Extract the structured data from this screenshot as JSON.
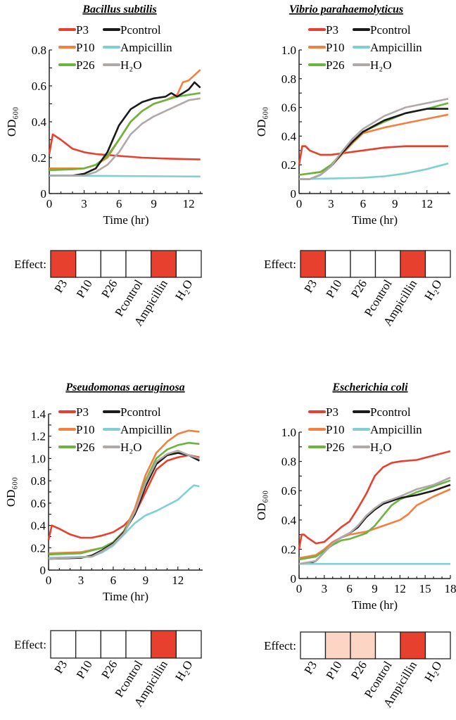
{
  "chart_data": [
    {
      "type": "line",
      "title": "Bacillus subtilis",
      "xlabel": "Time (hr)",
      "ylabel": "OD₆₀₀",
      "xlim": [
        0,
        13.2
      ],
      "ylim": [
        0,
        0.8
      ],
      "xticks": [
        "0",
        "3",
        "6",
        "9",
        "12"
      ],
      "xtick_values": [
        0,
        3,
        6,
        9,
        12
      ],
      "yticks": [
        "0",
        "0.2",
        "0.4",
        "0.6",
        "0.8"
      ],
      "ytick_values": [
        0,
        0.2,
        0.4,
        0.6,
        0.8
      ],
      "legend": "top",
      "effect_label": "Effect:",
      "effect_categories": [
        "P3",
        "P10",
        "P26",
        "Pcontrol",
        "Ampicillin",
        "H₂O"
      ],
      "effect_levels": [
        "strong",
        "none",
        "none",
        "none",
        "strong",
        "none"
      ],
      "series": [
        {
          "name": "P3",
          "color": "#e8402f",
          "x": [
            0,
            0.3,
            1,
            2,
            3,
            4,
            5,
            6,
            8,
            10,
            13
          ],
          "y": [
            0.22,
            0.33,
            0.3,
            0.25,
            0.23,
            0.22,
            0.215,
            0.21,
            0.2,
            0.195,
            0.19
          ]
        },
        {
          "name": "P10",
          "color": "#f47f3e",
          "x": [
            0,
            2,
            3,
            4,
            5,
            6,
            7,
            8,
            9,
            10,
            11,
            11.5,
            12,
            13
          ],
          "y": [
            0.14,
            0.14,
            0.14,
            0.16,
            0.2,
            0.3,
            0.4,
            0.46,
            0.5,
            0.52,
            0.55,
            0.62,
            0.63,
            0.69
          ]
        },
        {
          "name": "P26",
          "color": "#6db33f",
          "x": [
            0,
            2,
            3,
            4,
            5,
            6,
            7,
            8,
            9,
            10,
            11,
            13
          ],
          "y": [
            0.13,
            0.135,
            0.14,
            0.16,
            0.21,
            0.3,
            0.4,
            0.46,
            0.5,
            0.52,
            0.54,
            0.56
          ]
        },
        {
          "name": "Pcontrol",
          "color": "#1a1a1a",
          "x": [
            0,
            2,
            3,
            4,
            5,
            6,
            7,
            8,
            9,
            10,
            10.5,
            11,
            12,
            12.5,
            13
          ],
          "y": [
            0.1,
            0.1,
            0.11,
            0.14,
            0.23,
            0.38,
            0.47,
            0.51,
            0.53,
            0.54,
            0.56,
            0.54,
            0.58,
            0.62,
            0.59
          ]
        },
        {
          "name": "Ampicillin",
          "color": "#7fcfd3",
          "x": [
            0,
            13
          ],
          "y": [
            0.1,
            0.095
          ]
        },
        {
          "name": "H₂O",
          "color": "#b0a9a8",
          "x": [
            0,
            3,
            4,
            5,
            6,
            7,
            8,
            9,
            10,
            11,
            12,
            13
          ],
          "y": [
            0.1,
            0.1,
            0.12,
            0.16,
            0.23,
            0.33,
            0.39,
            0.43,
            0.46,
            0.49,
            0.52,
            0.53
          ]
        }
      ]
    },
    {
      "type": "line",
      "title": "Vibrio parahaemolyticus",
      "xlabel": "Time (hr)",
      "ylabel": "OD₆₀₀",
      "xlim": [
        0,
        14.2
      ],
      "ylim": [
        0,
        1.0
      ],
      "xticks": [
        "0",
        "3",
        "6",
        "9",
        "12"
      ],
      "xtick_values": [
        0,
        3,
        6,
        9,
        12
      ],
      "yticks": [
        "0",
        "0.2",
        "0.4",
        "0.6",
        "0.8",
        "1.0"
      ],
      "ytick_values": [
        0,
        0.2,
        0.4,
        0.6,
        0.8,
        1.0
      ],
      "legend": "top",
      "effect_label": "Effect:",
      "effect_categories": [
        "P3",
        "P10",
        "P26",
        "Pcontrol",
        "Ampicillin",
        "H₂O"
      ],
      "effect_levels": [
        "strong",
        "none",
        "none",
        "none",
        "strong",
        "none"
      ],
      "series": [
        {
          "name": "P3",
          "color": "#e8402f",
          "x": [
            0,
            0.3,
            0.6,
            1,
            2,
            3,
            4,
            6,
            8,
            10,
            14
          ],
          "y": [
            0.2,
            0.33,
            0.33,
            0.3,
            0.27,
            0.27,
            0.28,
            0.3,
            0.32,
            0.33,
            0.33
          ]
        },
        {
          "name": "P10",
          "color": "#f47f3e",
          "x": [
            0,
            2,
            3,
            4,
            5,
            6,
            8,
            10,
            12,
            14
          ],
          "y": [
            0.13,
            0.15,
            0.19,
            0.27,
            0.35,
            0.42,
            0.46,
            0.49,
            0.52,
            0.55
          ]
        },
        {
          "name": "P26",
          "color": "#6db33f",
          "x": [
            0,
            2,
            3,
            4,
            5,
            6,
            8,
            10,
            12,
            14
          ],
          "y": [
            0.13,
            0.15,
            0.2,
            0.28,
            0.36,
            0.43,
            0.5,
            0.56,
            0.59,
            0.63
          ]
        },
        {
          "name": "Pcontrol",
          "color": "#1a1a1a",
          "x": [
            0,
            1,
            2,
            3,
            4,
            5,
            6,
            8,
            10,
            12,
            14
          ],
          "y": [
            0.1,
            0.1,
            0.13,
            0.19,
            0.28,
            0.36,
            0.43,
            0.51,
            0.56,
            0.59,
            0.59
          ]
        },
        {
          "name": "Ampicillin",
          "color": "#7fcfd3",
          "x": [
            0,
            6,
            8,
            10,
            12,
            14
          ],
          "y": [
            0.1,
            0.11,
            0.12,
            0.14,
            0.17,
            0.21
          ]
        },
        {
          "name": "H₂O",
          "color": "#b0a9a8",
          "x": [
            0,
            1,
            2,
            3,
            4,
            5,
            6,
            8,
            10,
            12,
            14
          ],
          "y": [
            0.1,
            0.1,
            0.13,
            0.19,
            0.29,
            0.38,
            0.45,
            0.54,
            0.6,
            0.63,
            0.66
          ]
        }
      ]
    },
    {
      "type": "line",
      "title": "Pseudomonas aeruginosa",
      "xlabel": "Time (hr)",
      "ylabel": "OD₆₀₀",
      "xlim": [
        0,
        14.3
      ],
      "ylim": [
        0,
        1.4
      ],
      "xticks": [
        "0",
        "3",
        "6",
        "9",
        "12"
      ],
      "xtick_values": [
        0,
        3,
        6,
        9,
        12
      ],
      "yticks": [
        "0",
        "0.2",
        "0.4",
        "0.6",
        "0.8",
        "1.0",
        "1.2",
        "1.4"
      ],
      "ytick_values": [
        0,
        0.2,
        0.4,
        0.6,
        0.8,
        1.0,
        1.2,
        1.4
      ],
      "legend": "top",
      "effect_label": "Effect:",
      "effect_categories": [
        "P3",
        "P10",
        "P26",
        "Pcontrol",
        "Ampicillin",
        "H₂O"
      ],
      "effect_levels": [
        "none",
        "none",
        "none",
        "none",
        "strong",
        "none"
      ],
      "series": [
        {
          "name": "P3",
          "color": "#e8402f",
          "x": [
            0,
            0.3,
            1,
            2,
            3,
            4,
            5,
            6,
            7,
            8,
            9,
            10,
            11,
            12,
            13,
            14
          ],
          "y": [
            0.27,
            0.4,
            0.37,
            0.32,
            0.29,
            0.29,
            0.31,
            0.34,
            0.4,
            0.5,
            0.7,
            0.9,
            0.98,
            1.01,
            1.03,
            1.01
          ]
        },
        {
          "name": "P10",
          "color": "#f47f3e",
          "x": [
            0,
            3,
            5,
            6,
            7,
            8,
            9,
            10,
            11,
            12,
            13,
            14
          ],
          "y": [
            0.15,
            0.16,
            0.2,
            0.25,
            0.35,
            0.55,
            0.85,
            1.05,
            1.15,
            1.22,
            1.25,
            1.24
          ]
        },
        {
          "name": "P26",
          "color": "#6db33f",
          "x": [
            0,
            3,
            5,
            6,
            7,
            8,
            9,
            10,
            11,
            12,
            13,
            14
          ],
          "y": [
            0.14,
            0.15,
            0.2,
            0.25,
            0.35,
            0.52,
            0.8,
            1.0,
            1.08,
            1.12,
            1.14,
            1.13
          ]
        },
        {
          "name": "Pcontrol",
          "color": "#1a1a1a",
          "x": [
            0,
            3,
            4,
            5,
            6,
            7,
            8,
            9,
            10,
            11,
            12,
            13,
            14
          ],
          "y": [
            0.1,
            0.11,
            0.13,
            0.18,
            0.24,
            0.34,
            0.5,
            0.75,
            0.95,
            1.03,
            1.05,
            1.03,
            0.98
          ]
        },
        {
          "name": "Ampicillin",
          "color": "#7fcfd3",
          "x": [
            0,
            4,
            5,
            6,
            7,
            8,
            9,
            10,
            11,
            12,
            13,
            13.5,
            14
          ],
          "y": [
            0.11,
            0.12,
            0.16,
            0.22,
            0.32,
            0.42,
            0.49,
            0.53,
            0.58,
            0.63,
            0.72,
            0.76,
            0.75
          ]
        },
        {
          "name": "H₂O",
          "color": "#b0a9a8",
          "x": [
            0,
            4,
            5,
            6,
            7,
            8,
            9,
            10,
            11,
            12,
            13,
            14
          ],
          "y": [
            0.1,
            0.12,
            0.17,
            0.23,
            0.33,
            0.52,
            0.78,
            0.97,
            1.04,
            1.07,
            1.03,
            1.0
          ]
        }
      ]
    },
    {
      "type": "line",
      "title": "Escherichia coli",
      "xlabel": "Time (hr)",
      "ylabel": "OD₆₀₀",
      "xlim": [
        0,
        18
      ],
      "ylim": [
        0,
        1.0
      ],
      "xticks": [
        "0",
        "3",
        "6",
        "9",
        "12",
        "15",
        "18"
      ],
      "xtick_values": [
        0,
        3,
        6,
        9,
        12,
        15,
        18
      ],
      "yticks": [
        "0",
        "0.2",
        "0.4",
        "0.6",
        "0.8",
        "1.0"
      ],
      "ytick_values": [
        0,
        0.2,
        0.4,
        0.6,
        0.8,
        1.0
      ],
      "legend": "top",
      "effect_label": "Effect:",
      "effect_categories": [
        "P3",
        "P10",
        "P26",
        "Pcontrol",
        "Ampicillin",
        "H₂O"
      ],
      "effect_levels": [
        "none",
        "weak",
        "weak",
        "none",
        "strong",
        "none"
      ],
      "series": [
        {
          "name": "P3",
          "color": "#e8402f",
          "x": [
            0,
            0.3,
            0.6,
            1,
            2,
            3,
            4,
            5,
            6,
            7,
            8,
            9,
            10,
            11,
            12,
            14,
            16,
            18
          ],
          "y": [
            0.2,
            0.3,
            0.3,
            0.28,
            0.24,
            0.25,
            0.3,
            0.35,
            0.39,
            0.48,
            0.58,
            0.7,
            0.76,
            0.79,
            0.8,
            0.81,
            0.84,
            0.87
          ]
        },
        {
          "name": "P10",
          "color": "#f47f3e",
          "x": [
            0,
            1,
            2,
            3,
            4,
            5,
            6,
            8,
            10,
            12,
            13,
            14,
            16,
            18
          ],
          "y": [
            0.14,
            0.15,
            0.16,
            0.2,
            0.25,
            0.28,
            0.3,
            0.32,
            0.36,
            0.4,
            0.44,
            0.5,
            0.56,
            0.61
          ]
        },
        {
          "name": "P26",
          "color": "#6db33f",
          "x": [
            0,
            2,
            3,
            4,
            5,
            6,
            7,
            8,
            9,
            10,
            11,
            12,
            14,
            16,
            18
          ],
          "y": [
            0.13,
            0.15,
            0.19,
            0.23,
            0.26,
            0.27,
            0.29,
            0.31,
            0.36,
            0.43,
            0.5,
            0.54,
            0.59,
            0.63,
            0.67
          ]
        },
        {
          "name": "Pcontrol",
          "color": "#1a1a1a",
          "x": [
            0,
            1,
            2,
            3,
            4,
            5,
            6,
            7,
            8,
            9,
            10,
            11,
            12,
            14,
            16,
            18
          ],
          "y": [
            0.1,
            0.1,
            0.12,
            0.18,
            0.24,
            0.28,
            0.31,
            0.35,
            0.42,
            0.47,
            0.51,
            0.53,
            0.55,
            0.57,
            0.6,
            0.64
          ]
        },
        {
          "name": "Ampicillin",
          "color": "#7fcfd3",
          "x": [
            0,
            18
          ],
          "y": [
            0.1,
            0.1
          ]
        },
        {
          "name": "H₂O",
          "color": "#b0a9a8",
          "x": [
            0,
            2,
            3,
            4,
            5,
            6,
            7,
            8,
            9,
            10,
            11,
            12,
            14,
            16,
            18
          ],
          "y": [
            0.1,
            0.12,
            0.18,
            0.24,
            0.28,
            0.31,
            0.36,
            0.43,
            0.48,
            0.52,
            0.54,
            0.56,
            0.61,
            0.64,
            0.69
          ]
        }
      ]
    }
  ],
  "effect_colors": {
    "strong": "#e8402f",
    "weak": "#fdd5c4",
    "none": "#ffffff"
  }
}
